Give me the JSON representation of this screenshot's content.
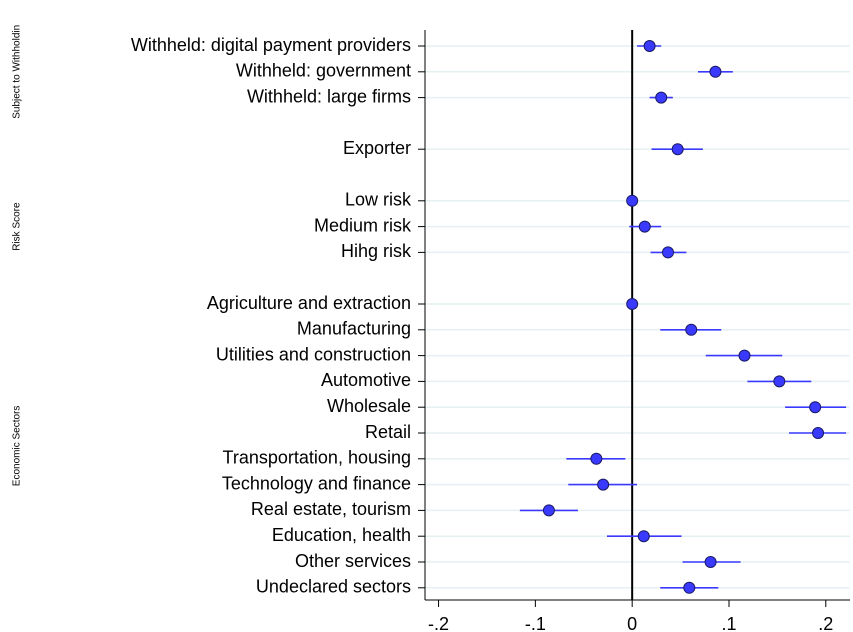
{
  "chart_data": {
    "type": "coefplot",
    "groups": [
      {
        "label": "Subject to Withholdin",
        "rows": [
          0,
          2
        ]
      },
      {
        "label": "Risk Score",
        "rows": [
          6,
          8
        ]
      },
      {
        "label": "Economic Sectors",
        "rows": [
          10,
          21
        ]
      }
    ],
    "categories": [
      "Withheld: digital payment providers",
      "Withheld: government",
      "Withheld: large firms",
      null,
      "Exporter",
      null,
      "Low risk",
      "Medium risk",
      "Hihg risk",
      null,
      "Agriculture and extraction",
      "Manufacturing",
      "Utilities and construction",
      "Automotive",
      "Wholesale",
      "Retail",
      "Transportation, housing",
      "Technology and finance",
      "Real estate, tourism",
      "Education, health",
      "Other services",
      "Undeclared sectors"
    ],
    "values": [
      0.018,
      0.086,
      0.03,
      null,
      0.047,
      null,
      0,
      0.013,
      0.037,
      null,
      0,
      0.061,
      0.116,
      0.152,
      0.189,
      0.192,
      -0.037,
      -0.03,
      -0.086,
      0.012,
      0.081,
      0.059
    ],
    "ci_low": [
      0.005,
      0.068,
      0.018,
      null,
      0.02,
      null,
      0,
      -0.003,
      0.019,
      null,
      0,
      0.029,
      0.076,
      0.119,
      0.158,
      0.162,
      -0.068,
      -0.066,
      -0.116,
      -0.026,
      0.052,
      0.029
    ],
    "ci_high": [
      0.03,
      0.104,
      0.042,
      null,
      0.073,
      null,
      0,
      0.03,
      0.056,
      null,
      0,
      0.092,
      0.155,
      0.185,
      0.221,
      0.221,
      -0.007,
      0.005,
      -0.056,
      0.051,
      0.112,
      0.089
    ],
    "color": "#3a3aff",
    "xlim": [
      -0.214,
      0.225
    ],
    "xticks": [
      {
        "value": -0.2,
        "label": "-.2"
      },
      {
        "value": -0.1,
        "label": "-.1"
      },
      0,
      {
        "value": 0.1,
        "label": ".1"
      },
      {
        "value": 0.2,
        "label": ".2"
      }
    ],
    "grid": true
  }
}
